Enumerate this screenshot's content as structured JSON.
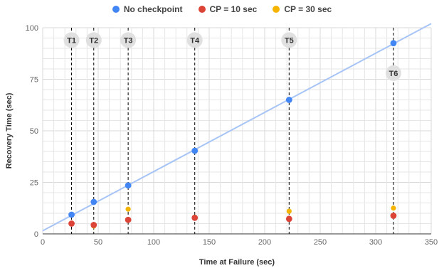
{
  "chart_data": {
    "type": "scatter",
    "xlabel": "Time at Failure (sec)",
    "ylabel": "Recovery Time (sec)",
    "xlim": [
      0,
      350
    ],
    "ylim": [
      0,
      100
    ],
    "xticks": [
      0,
      50,
      100,
      150,
      200,
      250,
      300,
      350
    ],
    "yticks": [
      0,
      25,
      50,
      75,
      100
    ],
    "grid": true,
    "legend_position": "top-center",
    "series": [
      {
        "name": "No checkpoint",
        "color": "#4285f4",
        "points": [
          [
            26,
            9.3
          ],
          [
            46,
            15.5
          ],
          [
            77,
            23.5
          ],
          [
            137,
            40.3
          ],
          [
            222,
            65
          ],
          [
            316,
            92.5
          ]
        ],
        "trendline": {
          "from": [
            0,
            1.5
          ],
          "to": [
            350,
            102
          ],
          "color": "#a7c4f6"
        }
      },
      {
        "name": "CP = 10 sec",
        "color": "#db4437",
        "points": [
          [
            26,
            5
          ],
          [
            46,
            4.3
          ],
          [
            77,
            6.8
          ],
          [
            137,
            7.8
          ],
          [
            222,
            7.3
          ],
          [
            316,
            8.8
          ]
        ]
      },
      {
        "name": "CP = 30 sec",
        "color": "#f4b400",
        "points": [
          [
            26,
            9.5
          ],
          [
            46,
            3.8
          ],
          [
            77,
            12
          ],
          [
            137,
            8.1
          ],
          [
            222,
            11
          ],
          [
            316,
            12.5
          ]
        ]
      }
    ],
    "vertical_markers": [
      {
        "label": "T1",
        "x": 26,
        "label_y": 94
      },
      {
        "label": "T2",
        "x": 46,
        "label_y": 94
      },
      {
        "label": "T3",
        "x": 77,
        "label_y": 94
      },
      {
        "label": "T4",
        "x": 137,
        "label_y": 94
      },
      {
        "label": "T5",
        "x": 222,
        "label_y": 94
      },
      {
        "label": "T6",
        "x": 316,
        "label_y": 78
      }
    ],
    "marker_style": {
      "line_color": "#000000",
      "label_fill": "#e0e0e0"
    },
    "gridline_color": "#e6e6e6"
  }
}
